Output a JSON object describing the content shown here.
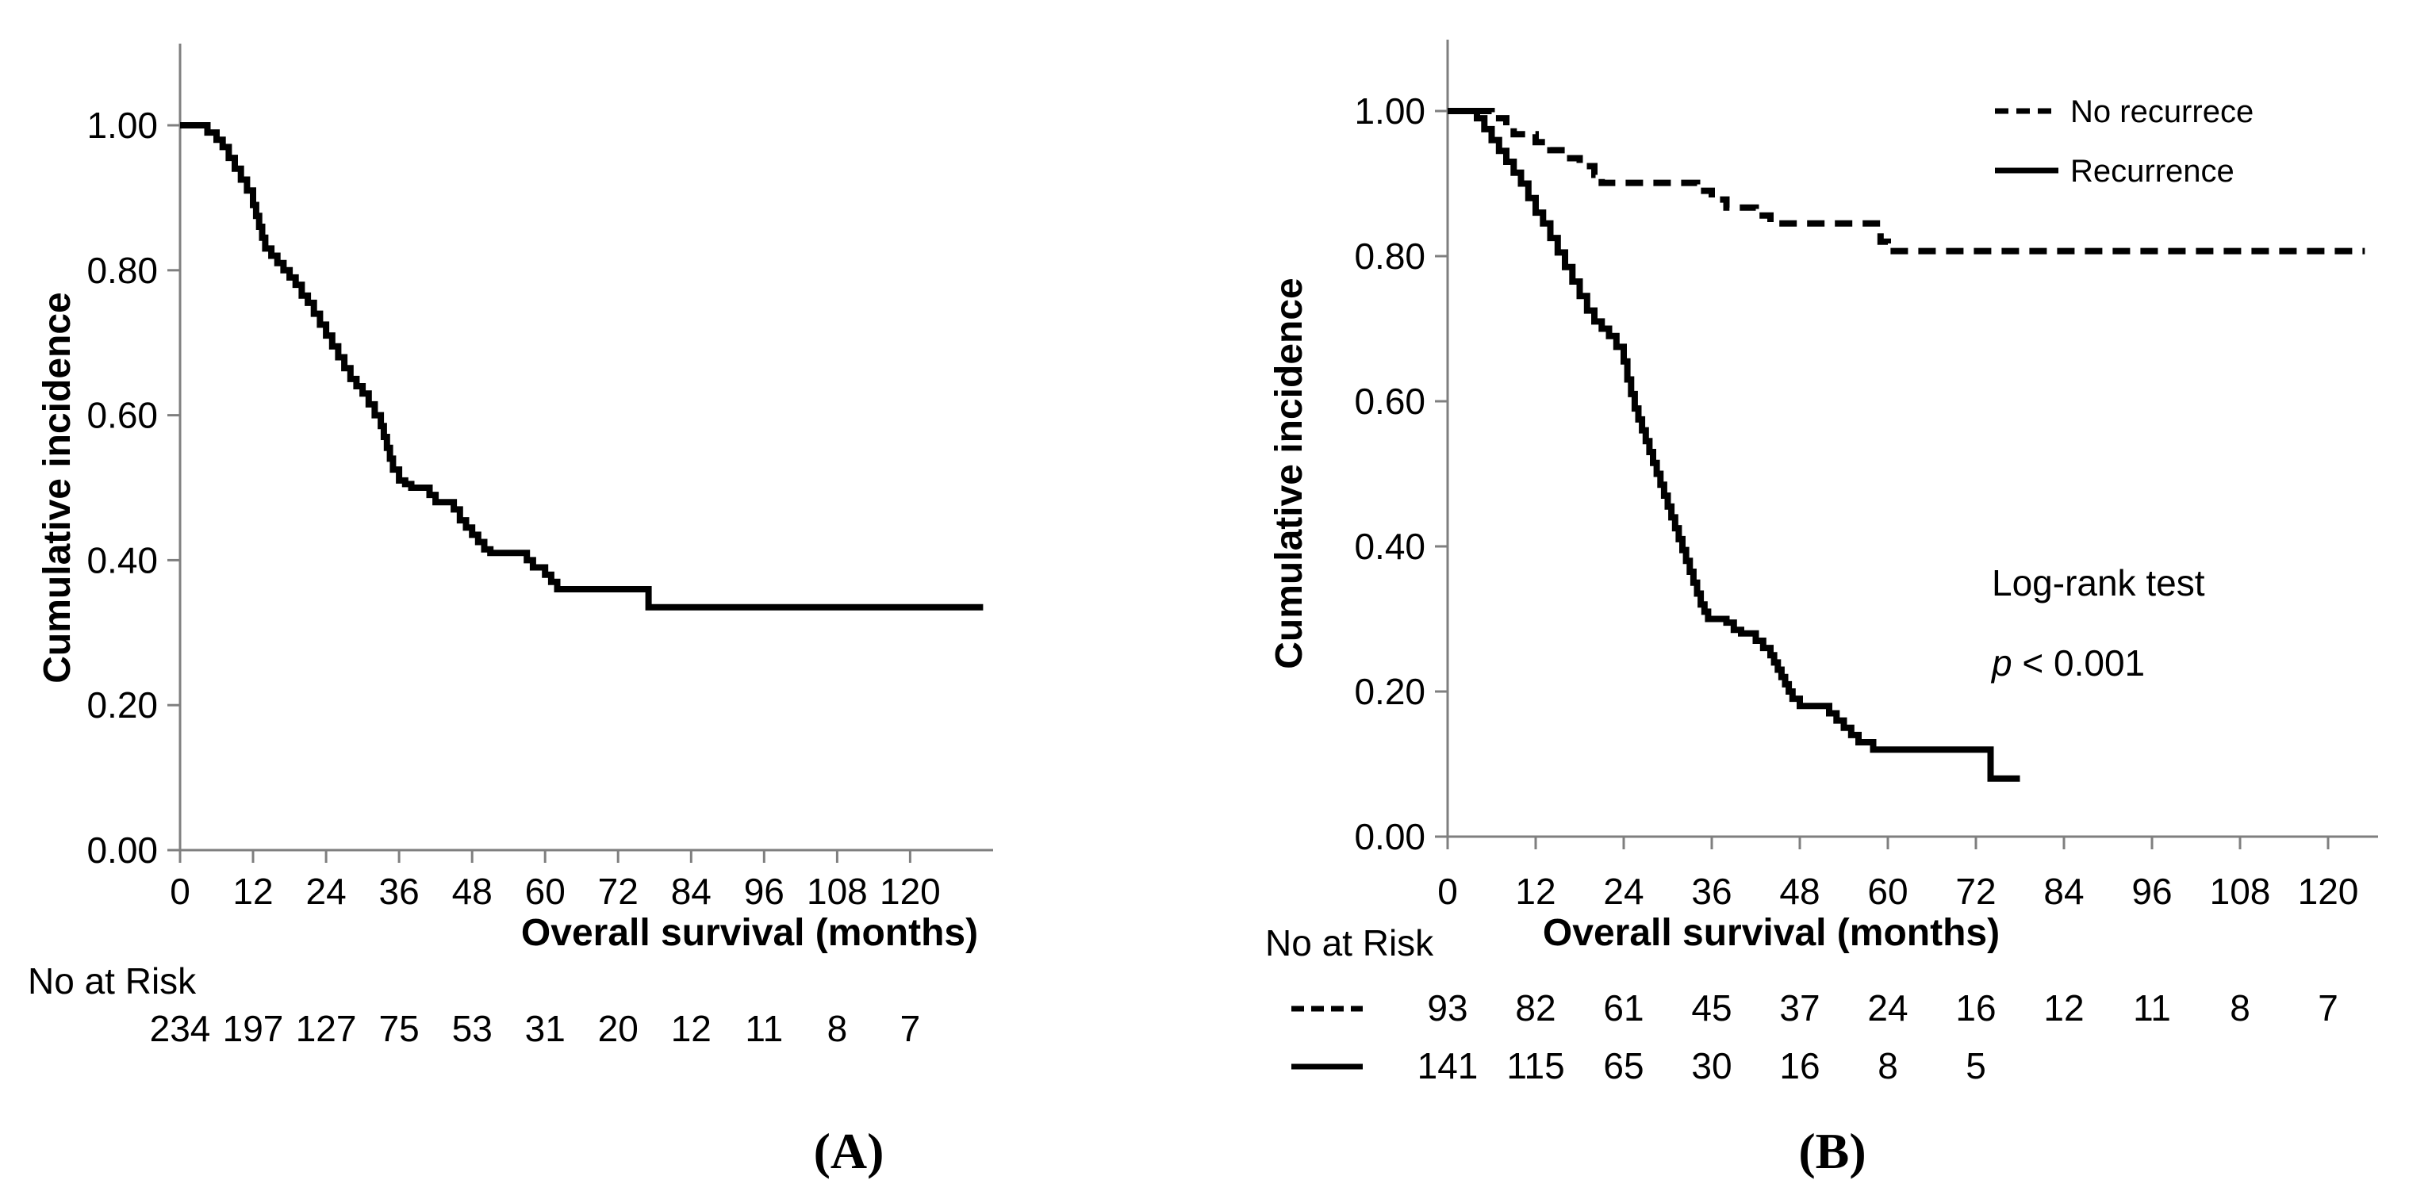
{
  "figure": {
    "background": "#ffffff",
    "text_color": "#000000",
    "axis_color": "#7f7f7f",
    "curve_color": "#000000"
  },
  "chart_data": [
    {
      "type": "line",
      "subtype": "kaplan-meier-step",
      "panel_label": "(A)",
      "xlabel": "Overall survival (months)",
      "ylabel": "Cumulative incidence",
      "xlim": [
        0,
        133
      ],
      "ylim": [
        0,
        1.1
      ],
      "xticks": [
        0,
        12,
        24,
        36,
        48,
        60,
        72,
        84,
        96,
        108,
        120
      ],
      "yticks": [
        1.0,
        0.8,
        0.6,
        0.4,
        0.2,
        0.0
      ],
      "ytick_labels": [
        "1.00",
        "0.80",
        "0.60",
        "0.40",
        "0.20",
        "0.00"
      ],
      "grid": false,
      "legend": null,
      "series": [
        {
          "style": "solid",
          "color": "#000000",
          "points": [
            [
              0,
              1.0
            ],
            [
              4,
              1.0
            ],
            [
              4.5,
              0.99
            ],
            [
              6,
              0.98
            ],
            [
              7,
              0.97
            ],
            [
              8,
              0.955
            ],
            [
              9,
              0.94
            ],
            [
              10,
              0.925
            ],
            [
              11,
              0.91
            ],
            [
              12,
              0.89
            ],
            [
              12.5,
              0.875
            ],
            [
              13,
              0.86
            ],
            [
              13.5,
              0.845
            ],
            [
              14,
              0.83
            ],
            [
              15,
              0.82
            ],
            [
              16,
              0.81
            ],
            [
              17,
              0.8
            ],
            [
              18,
              0.79
            ],
            [
              19,
              0.78
            ],
            [
              20,
              0.765
            ],
            [
              21,
              0.755
            ],
            [
              22,
              0.74
            ],
            [
              23,
              0.725
            ],
            [
              24,
              0.71
            ],
            [
              25,
              0.695
            ],
            [
              26,
              0.68
            ],
            [
              27,
              0.665
            ],
            [
              28,
              0.65
            ],
            [
              29,
              0.64
            ],
            [
              30,
              0.63
            ],
            [
              31,
              0.615
            ],
            [
              32,
              0.6
            ],
            [
              33,
              0.585
            ],
            [
              33.5,
              0.57
            ],
            [
              34,
              0.555
            ],
            [
              34.5,
              0.54
            ],
            [
              35,
              0.525
            ],
            [
              36,
              0.51
            ],
            [
              37,
              0.505
            ],
            [
              38,
              0.5
            ],
            [
              41,
              0.49
            ],
            [
              42,
              0.48
            ],
            [
              45,
              0.47
            ],
            [
              46,
              0.455
            ],
            [
              47,
              0.445
            ],
            [
              48,
              0.435
            ],
            [
              49,
              0.425
            ],
            [
              50,
              0.415
            ],
            [
              51,
              0.41
            ],
            [
              57,
              0.4
            ],
            [
              58,
              0.39
            ],
            [
              60,
              0.38
            ],
            [
              61,
              0.37
            ],
            [
              62,
              0.36
            ],
            [
              77,
              0.335
            ],
            [
              132,
              0.335
            ]
          ]
        }
      ],
      "risk_table": {
        "label": "No at Risk",
        "rows": [
          {
            "marker": "none",
            "counts": [
              "234",
              "197",
              "127",
              "75",
              "53",
              "31",
              "20",
              "12",
              "11",
              "8",
              "7"
            ]
          }
        ]
      }
    },
    {
      "type": "line",
      "subtype": "kaplan-meier-step",
      "panel_label": "(B)",
      "xlabel": "Overall survival (months)",
      "ylabel": "Cumulative incidence",
      "xlim": [
        0,
        127
      ],
      "ylim": [
        0,
        1.1
      ],
      "xticks": [
        0,
        12,
        24,
        36,
        48,
        60,
        72,
        84,
        96,
        108,
        120
      ],
      "yticks": [
        1.0,
        0.8,
        0.6,
        0.4,
        0.2,
        0.0
      ],
      "ytick_labels": [
        "1.00",
        "0.80",
        "0.60",
        "0.40",
        "0.20",
        "0.00"
      ],
      "grid": false,
      "legend": {
        "position": "top-right",
        "entries": [
          {
            "label": "No recurrece",
            "style": "dashed"
          },
          {
            "label": "Recurrence",
            "style": "solid"
          }
        ]
      },
      "annotation": {
        "title": "Log-rank test",
        "p_label": "p",
        "p_value": " < 0.001"
      },
      "series": [
        {
          "name": "No recurrece",
          "style": "dashed",
          "color": "#000000",
          "points": [
            [
              0,
              1.0
            ],
            [
              5,
              1.0
            ],
            [
              6,
              0.99
            ],
            [
              8,
              0.98
            ],
            [
              9,
              0.968
            ],
            [
              12,
              0.957
            ],
            [
              14,
              0.946
            ],
            [
              16,
              0.935
            ],
            [
              18,
              0.924
            ],
            [
              20,
              0.912
            ],
            [
              21,
              0.901
            ],
            [
              33,
              0.901
            ],
            [
              34,
              0.89
            ],
            [
              36,
              0.878
            ],
            [
              38,
              0.867
            ],
            [
              42,
              0.856
            ],
            [
              44,
              0.845
            ],
            [
              58,
              0.845
            ],
            [
              59,
              0.82
            ],
            [
              60,
              0.807
            ],
            [
              125,
              0.807
            ]
          ]
        },
        {
          "name": "Recurrence",
          "style": "solid",
          "color": "#000000",
          "points": [
            [
              0,
              1.0
            ],
            [
              3,
              1.0
            ],
            [
              4,
              0.99
            ],
            [
              5,
              0.975
            ],
            [
              6,
              0.96
            ],
            [
              7,
              0.945
            ],
            [
              8,
              0.93
            ],
            [
              9,
              0.915
            ],
            [
              10,
              0.9
            ],
            [
              11,
              0.88
            ],
            [
              12,
              0.86
            ],
            [
              13,
              0.845
            ],
            [
              14,
              0.825
            ],
            [
              15,
              0.805
            ],
            [
              16,
              0.785
            ],
            [
              17,
              0.765
            ],
            [
              18,
              0.745
            ],
            [
              19,
              0.725
            ],
            [
              20,
              0.71
            ],
            [
              21,
              0.7
            ],
            [
              22,
              0.69
            ],
            [
              23,
              0.675
            ],
            [
              24,
              0.655
            ],
            [
              24.5,
              0.63
            ],
            [
              25,
              0.61
            ],
            [
              25.5,
              0.59
            ],
            [
              26,
              0.575
            ],
            [
              26.5,
              0.56
            ],
            [
              27,
              0.545
            ],
            [
              27.5,
              0.53
            ],
            [
              28,
              0.515
            ],
            [
              28.5,
              0.5
            ],
            [
              29,
              0.485
            ],
            [
              29.5,
              0.47
            ],
            [
              30,
              0.455
            ],
            [
              30.5,
              0.44
            ],
            [
              31,
              0.425
            ],
            [
              31.5,
              0.41
            ],
            [
              32,
              0.395
            ],
            [
              32.5,
              0.38
            ],
            [
              33,
              0.365
            ],
            [
              33.5,
              0.35
            ],
            [
              34,
              0.335
            ],
            [
              34.5,
              0.32
            ],
            [
              35,
              0.31
            ],
            [
              35.5,
              0.3
            ],
            [
              38,
              0.295
            ],
            [
              39,
              0.285
            ],
            [
              40,
              0.28
            ],
            [
              42,
              0.27
            ],
            [
              43,
              0.26
            ],
            [
              44,
              0.25
            ],
            [
              44.5,
              0.24
            ],
            [
              45,
              0.23
            ],
            [
              45.5,
              0.22
            ],
            [
              46,
              0.21
            ],
            [
              46.5,
              0.2
            ],
            [
              47,
              0.19
            ],
            [
              48,
              0.18
            ],
            [
              52,
              0.17
            ],
            [
              53,
              0.16
            ],
            [
              54,
              0.15
            ],
            [
              55,
              0.14
            ],
            [
              56,
              0.13
            ],
            [
              58,
              0.12
            ],
            [
              74,
              0.08
            ],
            [
              78,
              0.08
            ]
          ]
        }
      ],
      "risk_table": {
        "label": "No at Risk",
        "rows": [
          {
            "marker": "dashed",
            "counts": [
              "93",
              "82",
              "61",
              "45",
              "37",
              "24",
              "16",
              "12",
              "11",
              "8",
              "7"
            ]
          },
          {
            "marker": "solid",
            "counts": [
              "141",
              "115",
              "65",
              "30",
              "16",
              "8",
              "5"
            ]
          }
        ]
      }
    }
  ]
}
